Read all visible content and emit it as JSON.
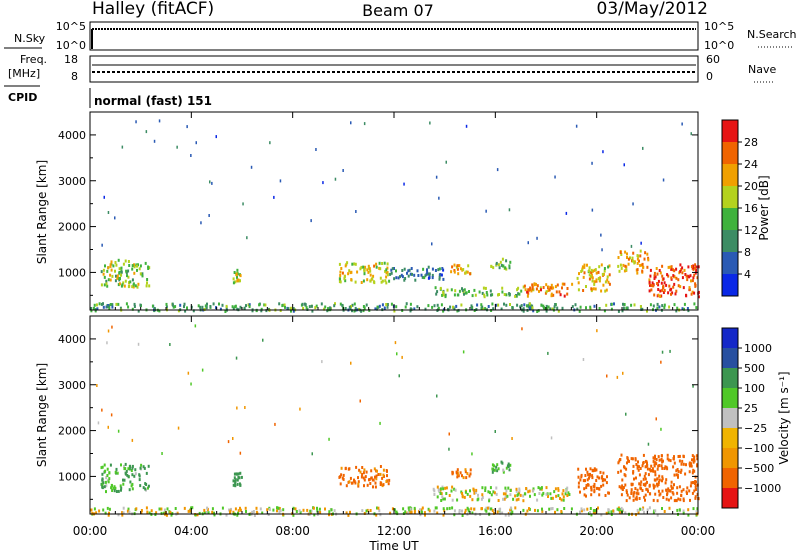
{
  "header": {
    "station": "Halley (fitACF)",
    "beam": "Beam 07",
    "date": "03/May/2012"
  },
  "strip_panels": {
    "nsky": {
      "left_label": "N.Sky",
      "right_label": "N.Search",
      "left_ticks": [
        "10^5",
        "10^0"
      ],
      "right_ticks": [
        "10^5",
        "10^0"
      ]
    },
    "freq": {
      "left_label_1": "Freq.",
      "left_label_2": "[MHz]",
      "right_label": "Nave",
      "left_ticks": [
        "18",
        "8"
      ],
      "right_ticks": [
        "60",
        "0"
      ]
    },
    "cpid": {
      "label": "CPID",
      "mode_text": "normal (fast) 151"
    }
  },
  "colors": {
    "power_scale": [
      "#0a28e6",
      "#2a5ab4",
      "#3c8c64",
      "#3fb23c",
      "#b4d21e",
      "#f0a000",
      "#f06400",
      "#e61414"
    ],
    "velocity_scale": [
      "#e61414",
      "#f06400",
      "#f09600",
      "#f0b400",
      "#c0c0c0",
      "#50c828",
      "#3c9650",
      "#2850a0",
      "#1428c8"
    ],
    "ground_scatter": "#c0c0c0"
  },
  "chart_data": [
    {
      "type": "heatmap",
      "name": "power",
      "ylabel": "Slant Range [km]",
      "xlabel": "",
      "x_ticks": [
        "00:00",
        "04:00",
        "08:00",
        "12:00",
        "16:00",
        "20:00",
        "00:00"
      ],
      "xlim_hours": [
        0,
        24
      ],
      "y_ticks": [
        1000,
        2000,
        3000,
        4000
      ],
      "ylim": [
        180,
        4500
      ],
      "colorbar": {
        "label": "Power [dB]",
        "tick_labels": [
          "4",
          "8",
          "12",
          "16",
          "20",
          "24",
          "28"
        ],
        "range": [
          0,
          32
        ]
      },
      "echo_regions": [
        {
          "t0": 0.0,
          "t1": 24.0,
          "r0": 180,
          "r1": 350,
          "value": 12
        },
        {
          "t0": 0.4,
          "t1": 2.3,
          "r0": 700,
          "r1": 1300,
          "value": 16
        },
        {
          "t0": 5.6,
          "t1": 6.0,
          "r0": 800,
          "r1": 1100,
          "value": 18
        },
        {
          "t0": 9.8,
          "t1": 11.8,
          "r0": 800,
          "r1": 1250,
          "value": 20
        },
        {
          "t0": 11.8,
          "t1": 14.0,
          "r0": 850,
          "r1": 1150,
          "value": 8
        },
        {
          "t0": 14.2,
          "t1": 15.0,
          "r0": 1000,
          "r1": 1200,
          "value": 22
        },
        {
          "t0": 15.8,
          "t1": 16.6,
          "r0": 1100,
          "r1": 1350,
          "value": 14
        },
        {
          "t0": 13.5,
          "t1": 17.0,
          "r0": 500,
          "r1": 700,
          "value": 14
        },
        {
          "t0": 17.0,
          "t1": 19.0,
          "r0": 500,
          "r1": 800,
          "value": 24
        },
        {
          "t0": 19.2,
          "t1": 20.5,
          "r0": 600,
          "r1": 1200,
          "value": 20
        },
        {
          "t0": 20.8,
          "t1": 22.0,
          "r0": 1000,
          "r1": 1500,
          "value": 22
        },
        {
          "t0": 22.0,
          "t1": 24.0,
          "r0": 500,
          "r1": 1200,
          "value": 28
        }
      ]
    },
    {
      "type": "heatmap",
      "name": "velocity",
      "ylabel": "Slant Range [km]",
      "xlabel": "Time UT",
      "x_ticks": [
        "00:00",
        "04:00",
        "08:00",
        "12:00",
        "16:00",
        "20:00",
        "00:00"
      ],
      "xlim_hours": [
        0,
        24
      ],
      "y_ticks": [
        1000,
        2000,
        3000,
        4000
      ],
      "ylim": [
        180,
        4500
      ],
      "colorbar": {
        "label": "Velocity [m s⁻¹]",
        "tick_labels": [
          "1000",
          "500",
          "100",
          "25",
          "−25",
          "−100",
          "−500",
          "−1000"
        ],
        "range": [
          -1000,
          1000
        ]
      },
      "echo_regions": [
        {
          "t0": 0.0,
          "t1": 24.0,
          "r0": 180,
          "r1": 350,
          "value": 0
        },
        {
          "t0": 0.4,
          "t1": 2.3,
          "r0": 700,
          "r1": 1300,
          "value": 100
        },
        {
          "t0": 5.6,
          "t1": 6.0,
          "r0": 800,
          "r1": 1100,
          "value": 200
        },
        {
          "t0": 9.8,
          "t1": 11.8,
          "r0": 800,
          "r1": 1250,
          "value": -150
        },
        {
          "t0": 14.2,
          "t1": 15.0,
          "r0": 1000,
          "r1": 1200,
          "value": -150
        },
        {
          "t0": 15.8,
          "t1": 16.6,
          "r0": 1100,
          "r1": 1350,
          "value": 100
        },
        {
          "t0": 13.5,
          "t1": 19.0,
          "r0": 500,
          "r1": 800,
          "value": 0
        },
        {
          "t0": 19.2,
          "t1": 20.5,
          "r0": 600,
          "r1": 1200,
          "value": -200
        },
        {
          "t0": 20.8,
          "t1": 24.0,
          "r0": 500,
          "r1": 1500,
          "value": -300
        }
      ]
    }
  ]
}
